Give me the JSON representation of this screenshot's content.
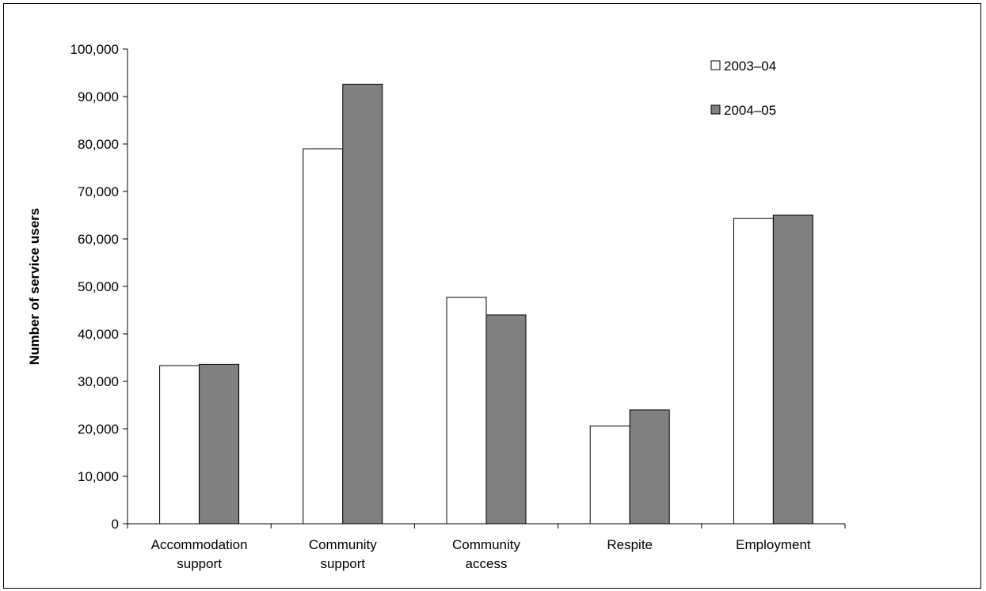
{
  "chart_data": {
    "type": "bar",
    "ylabel": "Number of service users",
    "xlabel": "",
    "categories": [
      [
        "Accommodation",
        "support"
      ],
      [
        "Community",
        "support"
      ],
      [
        "Community",
        "access"
      ],
      [
        "Respite"
      ],
      [
        "Employment"
      ]
    ],
    "series": [
      {
        "name": "2003–04",
        "values": [
          33300,
          79000,
          47700,
          20600,
          64300
        ],
        "color": "#ffffff"
      },
      {
        "name": "2004–05",
        "values": [
          33600,
          92600,
          44000,
          24000,
          65000
        ],
        "color": "#808080"
      }
    ],
    "ylim": [
      0,
      100000
    ],
    "yticks": [
      0,
      10000,
      20000,
      30000,
      40000,
      50000,
      60000,
      70000,
      80000,
      90000,
      100000
    ],
    "ytick_labels": [
      "0",
      "10,000",
      "20,000",
      "30,000",
      "40,000",
      "50,000",
      "60,000",
      "70,000",
      "80,000",
      "90,000",
      "100,000"
    ],
    "grid": false,
    "legend_position": "top-right"
  }
}
